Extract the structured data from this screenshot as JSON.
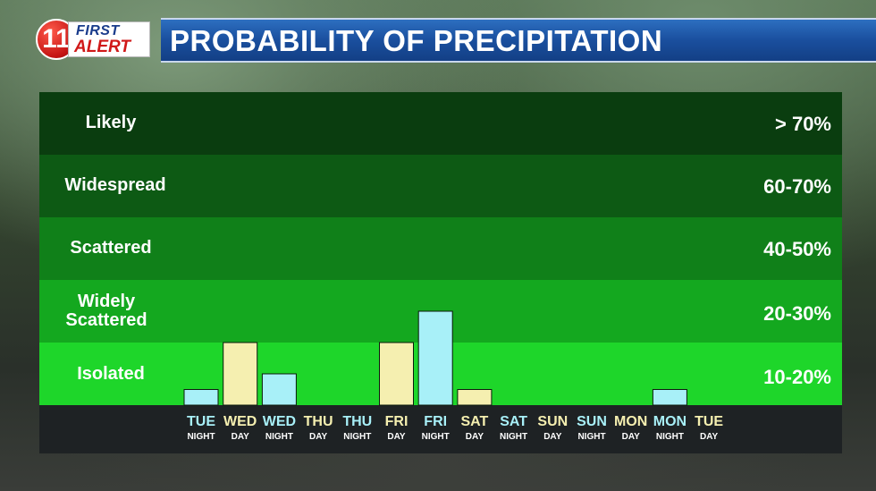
{
  "header": {
    "logo_number": "11",
    "logo_first": "FIRST",
    "logo_alert": "ALERT",
    "title": "PROBABILITY OF PRECIPITATION"
  },
  "colors": {
    "day_bar": "#f5efb0",
    "night_bar": "#a8f0f8",
    "band_likely": "#0a3d0f",
    "band_widespread": "#0d5a14",
    "band_scattered": "#108019",
    "band_widely": "#14a81f",
    "band_isolated": "#1ed62a",
    "axis_bg": "#1e2224",
    "title_bar": "#1a4f9e"
  },
  "chart_data": {
    "type": "bar",
    "title": "PROBABILITY OF PRECIPITATION",
    "y_unit": "%",
    "ylim": [
      0,
      100
    ],
    "bands": [
      {
        "label": "Likely",
        "range": "> 70%",
        "min": 70,
        "max": 100
      },
      {
        "label": "Widespread",
        "range": "60-70%",
        "min": 60,
        "max": 70
      },
      {
        "label": "Scattered",
        "range": "40-50%",
        "min": 40,
        "max": 60
      },
      {
        "label": "Widely Scattered",
        "range": "20-30%",
        "min": 20,
        "max": 40
      },
      {
        "label": "Isolated",
        "range": "10-20%",
        "min": 0,
        "max": 20
      }
    ],
    "categories": [
      {
        "day": "TUE",
        "part": "NIGHT"
      },
      {
        "day": "WED",
        "part": "DAY"
      },
      {
        "day": "WED",
        "part": "NIGHT"
      },
      {
        "day": "THU",
        "part": "DAY"
      },
      {
        "day": "THU",
        "part": "NIGHT"
      },
      {
        "day": "FRI",
        "part": "DAY"
      },
      {
        "day": "FRI",
        "part": "NIGHT"
      },
      {
        "day": "SAT",
        "part": "DAY"
      },
      {
        "day": "SAT",
        "part": "NIGHT"
      },
      {
        "day": "SUN",
        "part": "DAY"
      },
      {
        "day": "SUN",
        "part": "NIGHT"
      },
      {
        "day": "MON",
        "part": "DAY"
      },
      {
        "day": "MON",
        "part": "NIGHT"
      },
      {
        "day": "TUE",
        "part": "DAY"
      }
    ],
    "values": [
      5,
      20,
      10,
      0,
      0,
      20,
      30,
      5,
      0,
      0,
      0,
      0,
      5,
      0
    ],
    "legend": "none",
    "grid": false
  }
}
